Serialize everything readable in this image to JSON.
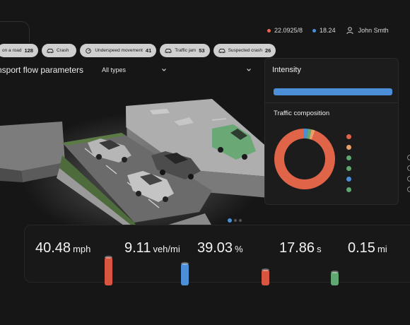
{
  "header": {
    "date": "22.0925/8",
    "time": "18.24",
    "user": "John Smth",
    "colors": {
      "date_dot": "#e8674a",
      "time_dot": "#4a8fd8"
    }
  },
  "events": [
    {
      "label": "on a road",
      "count": "128",
      "icon": "road-icon"
    },
    {
      "label": "Crash",
      "count": "",
      "icon": "car-icon"
    },
    {
      "label": "Underspeed movement",
      "count": "41",
      "icon": "speedometer-icon"
    },
    {
      "label": "Traffic jam",
      "count": "53",
      "icon": "car-icon"
    },
    {
      "label": "Suspected crash",
      "count": "26",
      "icon": "car-icon"
    }
  ],
  "filters": {
    "title": "nsport flow parameters",
    "type_select": "All types"
  },
  "panel": {
    "intensity_title": "Intensity",
    "intensity_level": 1.0,
    "composition_title": "Traffic composition",
    "composition": {
      "segments": [
        {
          "value": 94,
          "color": "#e06448"
        },
        {
          "value": 2,
          "color": "#4a8fd8"
        },
        {
          "value": 2,
          "color": "#5fa872"
        },
        {
          "value": 2,
          "color": "#e8a06a"
        }
      ],
      "legend_colors": [
        "#e06448",
        "#e8a06a",
        "#5fa872",
        "#5fa872",
        "#4a8fd8",
        "#5fa872"
      ]
    }
  },
  "pager": {
    "count": 3,
    "active": 0
  },
  "metrics": [
    {
      "value": "40.48",
      "unit": "mph",
      "color": "#d85540",
      "level": 0.62
    },
    {
      "value": "9.11",
      "unit": "veh/mi",
      "color": "#4a8fd8",
      "level": 0.48
    },
    {
      "value": "39.03",
      "unit": "%",
      "color": "#d85540",
      "level": 0.34
    },
    {
      "value": "17.86",
      "unit": "s",
      "color": "#5fa872",
      "level": 0.3
    },
    {
      "value": "0.15",
      "unit": "mi",
      "color": "",
      "level": 0
    }
  ]
}
